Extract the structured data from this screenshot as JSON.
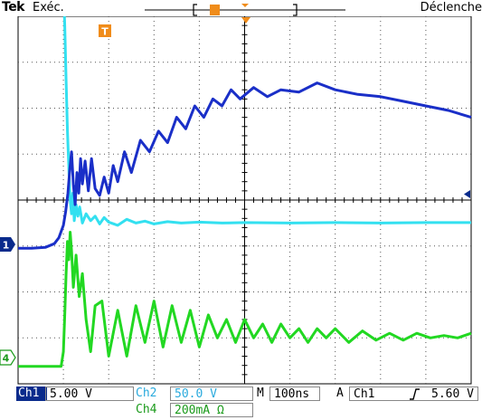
{
  "header": {
    "brand": "Tek",
    "run_state": "Exéc.",
    "trigger_state": "Déclenche"
  },
  "trigger_markers": {
    "trigger_label": "T"
  },
  "channel_markers": {
    "ch1": "1",
    "ch4": "4"
  },
  "status": {
    "ch1_label": "Ch1",
    "ch1_scale": "5.00 V",
    "ch2_label": "Ch2",
    "ch2_scale": "50.0 V",
    "ch4_label": "Ch4",
    "ch4_scale": "200mA Ω",
    "timebase_label": "M",
    "timebase": "100ns",
    "trigger_mode": "A",
    "trigger_source": "Ch1",
    "trigger_level": "5.60 V"
  },
  "colors": {
    "ch1": "#1a2fc8",
    "ch2": "#33e0f0",
    "ch4": "#22d822",
    "trigger": "#f08c1a",
    "marker": "#0a2b8c"
  },
  "chart_data": {
    "type": "line",
    "grid": true,
    "x_divisions": 10,
    "y_divisions": 8,
    "series": [
      {
        "key": "ch2",
        "x": [
          0,
          0.97,
          1.0,
          1.03,
          1.06,
          1.09,
          1.12,
          1.15,
          1.18,
          1.21,
          1.24,
          1.28,
          1.32,
          1.36,
          1.42,
          1.5,
          1.6,
          1.7,
          1.8,
          1.9,
          2.0,
          2.2,
          2.4,
          2.6,
          2.8,
          3.0,
          3.3,
          3.6,
          4.0,
          4.5,
          5,
          6,
          7,
          8,
          9,
          10
        ],
        "y": [
          5.08,
          5.08,
          4.7,
          3.8,
          2.6,
          1.5,
          0.7,
          0.0,
          -0.3,
          0.15,
          -0.45,
          -0.1,
          -0.35,
          -0.15,
          -0.5,
          -0.3,
          -0.45,
          -0.35,
          -0.52,
          -0.38,
          -0.48,
          -0.55,
          -0.42,
          -0.5,
          -0.46,
          -0.52,
          -0.47,
          -0.5,
          -0.48,
          -0.5,
          -0.49,
          -0.5,
          -0.49,
          -0.5,
          -0.49,
          -0.49
        ]
      },
      {
        "key": "ch1",
        "x": [
          0,
          0.3,
          0.6,
          0.8,
          0.9,
          1.0,
          1.05,
          1.1,
          1.14,
          1.18,
          1.22,
          1.26,
          1.3,
          1.34,
          1.38,
          1.42,
          1.48,
          1.55,
          1.62,
          1.7,
          1.8,
          1.9,
          2.0,
          2.1,
          2.2,
          2.35,
          2.5,
          2.7,
          2.9,
          3.1,
          3.3,
          3.5,
          3.7,
          3.9,
          4.1,
          4.3,
          4.5,
          4.7,
          4.9,
          5.2,
          5.5,
          5.8,
          6.2,
          6.6,
          7.0,
          7.5,
          8,
          8.5,
          9,
          9.5,
          10
        ],
        "y": [
          -1.05,
          -1.05,
          -1.03,
          -0.95,
          -0.82,
          -0.55,
          -0.25,
          0.15,
          0.65,
          1.05,
          0.35,
          -0.1,
          0.6,
          0.15,
          0.9,
          0.35,
          0.85,
          0.2,
          0.9,
          0.25,
          0.1,
          0.5,
          0.15,
          0.75,
          0.4,
          1.05,
          0.6,
          1.3,
          1.05,
          1.5,
          1.25,
          1.8,
          1.55,
          2.05,
          1.8,
          2.2,
          2.05,
          2.4,
          2.2,
          2.45,
          2.25,
          2.4,
          2.35,
          2.55,
          2.4,
          2.3,
          2.25,
          2.15,
          2.05,
          1.95,
          1.8
        ]
      },
      {
        "key": "ch4",
        "x": [
          0,
          0.5,
          0.95,
          1.0,
          1.03,
          1.06,
          1.09,
          1.12,
          1.15,
          1.18,
          1.22,
          1.28,
          1.35,
          1.42,
          1.5,
          1.6,
          1.7,
          1.85,
          2.0,
          2.2,
          2.4,
          2.6,
          2.8,
          3.0,
          3.2,
          3.4,
          3.6,
          3.8,
          4.0,
          4.2,
          4.4,
          4.6,
          4.8,
          5.0,
          5.2,
          5.4,
          5.6,
          5.8,
          6.0,
          6.2,
          6.4,
          6.6,
          6.8,
          7.0,
          7.3,
          7.6,
          7.9,
          8.2,
          8.5,
          8.8,
          9.1,
          9.4,
          9.7,
          10
        ],
        "y": [
          -3.62,
          -3.62,
          -3.62,
          -3.3,
          -2.5,
          -1.6,
          -0.9,
          -1.3,
          -0.7,
          -1.1,
          -1.9,
          -1.2,
          -2.1,
          -1.6,
          -2.6,
          -3.3,
          -2.3,
          -2.2,
          -3.4,
          -2.4,
          -3.4,
          -2.3,
          -3.1,
          -2.2,
          -3.2,
          -2.3,
          -3.1,
          -2.4,
          -3.2,
          -2.5,
          -3.0,
          -2.6,
          -3.1,
          -2.6,
          -3.0,
          -2.7,
          -3.1,
          -2.7,
          -3.0,
          -2.8,
          -3.1,
          -2.8,
          -3.0,
          -2.8,
          -3.1,
          -2.85,
          -3.05,
          -2.9,
          -3.05,
          -2.9,
          -3.0,
          -2.95,
          -3.0,
          -2.9
        ]
      }
    ]
  }
}
